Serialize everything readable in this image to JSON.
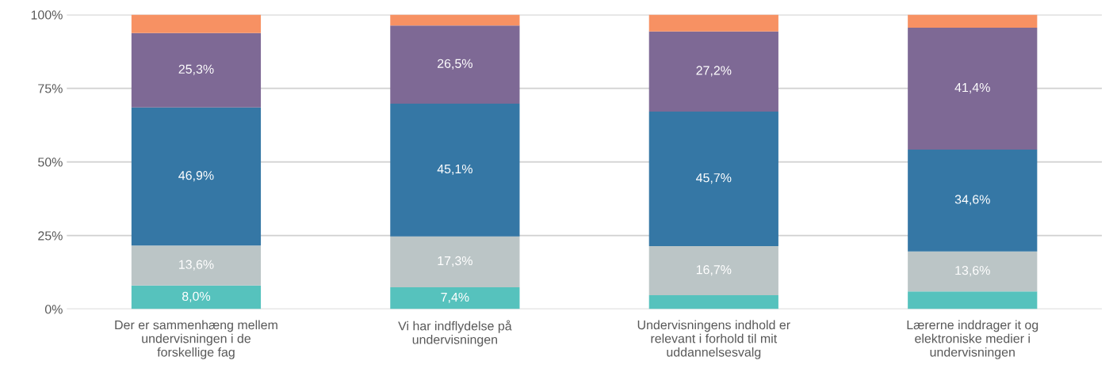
{
  "chart_data": {
    "type": "bar",
    "stacked": true,
    "categories": [
      "Der er sammenhæng mellem undervisningen i de forskellige fag",
      "Vi har indflydelse på undervisningen",
      "Undervisningens indhold er relevant i forhold til mit uddannelsesvalg",
      "Lærerne inddrager it og elektroniske medier i undervisningen"
    ],
    "series": [
      {
        "color": "#56c2bd",
        "values": [
          8.0,
          7.4,
          4.7,
          6.0
        ],
        "value_labels": [
          "8,0%",
          "7,4%",
          null,
          null
        ]
      },
      {
        "color": "#bbc5c6",
        "values": [
          13.6,
          17.3,
          16.7,
          13.6
        ],
        "value_labels": [
          "13,6%",
          "17,3%",
          "16,7%",
          "13,6%"
        ]
      },
      {
        "color": "#3577a5",
        "values": [
          46.9,
          45.1,
          45.7,
          34.6
        ],
        "value_labels": [
          "46,9%",
          "45,1%",
          "45,7%",
          "34,6%"
        ]
      },
      {
        "color": "#7e6995",
        "values": [
          25.3,
          26.5,
          27.2,
          41.4
        ],
        "value_labels": [
          "25,3%",
          "26,5%",
          "27,2%",
          "41,4%"
        ]
      },
      {
        "color": "#f79163",
        "values": [
          6.2,
          3.7,
          5.7,
          4.4
        ],
        "value_labels": [
          null,
          null,
          null,
          null
        ]
      }
    ],
    "ylim": [
      0,
      100
    ],
    "yticks": [
      {
        "value": 0,
        "label": "0%"
      },
      {
        "value": 25,
        "label": "25%"
      },
      {
        "value": 50,
        "label": "50%"
      },
      {
        "value": 75,
        "label": "75%"
      },
      {
        "value": 100,
        "label": "100%"
      }
    ],
    "grid": "y",
    "legend": false
  }
}
